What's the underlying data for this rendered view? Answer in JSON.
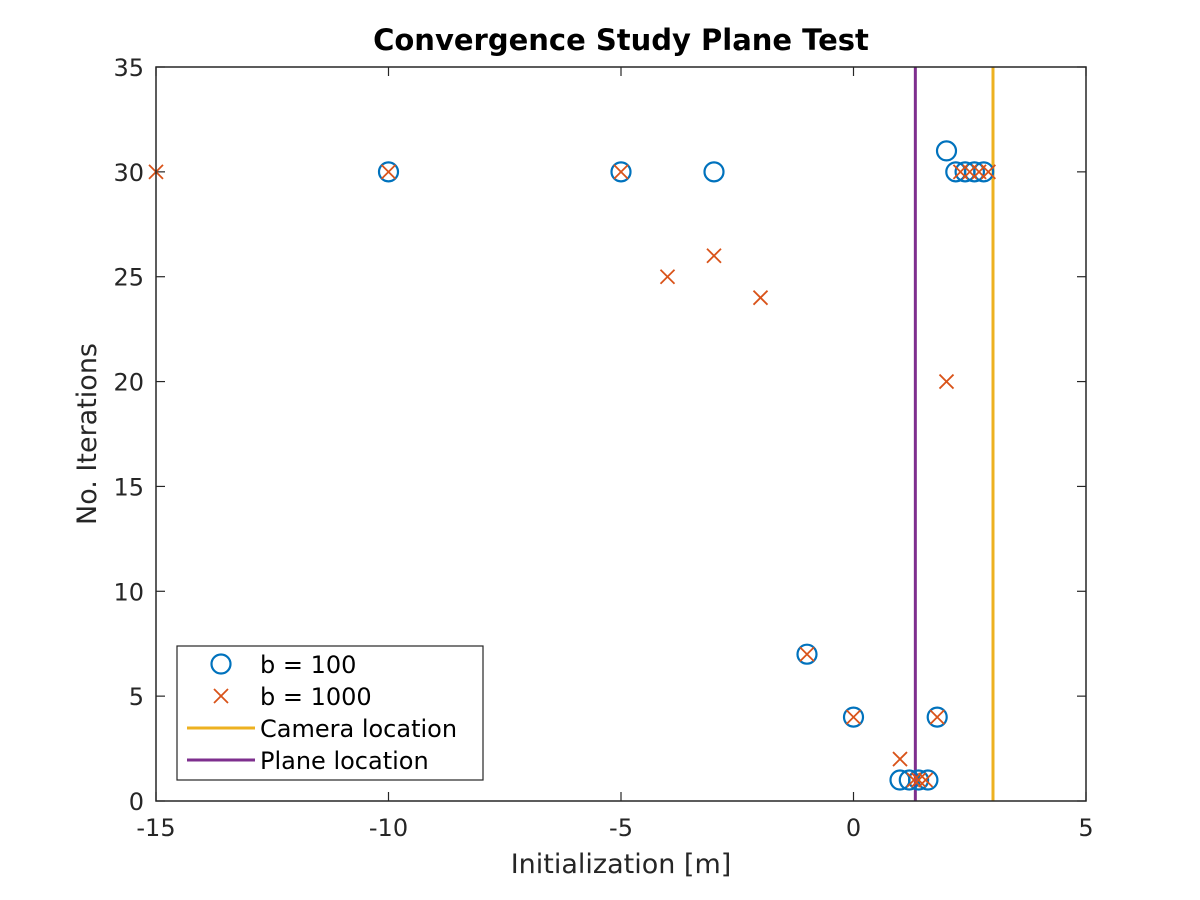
{
  "chart_data": {
    "type": "scatter",
    "title": "Convergence Study Plane Test",
    "xlabel": "Initialization [m]",
    "ylabel": "No. Iterations",
    "xlim": [
      -15,
      5
    ],
    "ylim": [
      0,
      35
    ],
    "xticks": [
      -15,
      -10,
      -5,
      0,
      5
    ],
    "yticks": [
      0,
      5,
      10,
      15,
      20,
      25,
      30,
      35
    ],
    "xtick_labels": [
      "-15",
      "-10",
      "-5",
      "0",
      "5"
    ],
    "ytick_labels": [
      "0",
      "5",
      "10",
      "15",
      "20",
      "25",
      "30",
      "35"
    ],
    "grid": false,
    "legend_position": "bottom-left",
    "series": [
      {
        "name": "b = 100",
        "marker": "circle",
        "color": "#0072BD",
        "points": [
          [
            -10,
            30
          ],
          [
            -5,
            30
          ],
          [
            -3,
            30
          ],
          [
            -1,
            7
          ],
          [
            0,
            4
          ],
          [
            1,
            1
          ],
          [
            1.2,
            1
          ],
          [
            1.4,
            1
          ],
          [
            1.6,
            1
          ],
          [
            1.8,
            4
          ],
          [
            2,
            31
          ],
          [
            2.2,
            30
          ],
          [
            2.4,
            30
          ],
          [
            2.6,
            30
          ],
          [
            2.8,
            30
          ]
        ]
      },
      {
        "name": "b = 1000",
        "marker": "x",
        "color": "#D95319",
        "points": [
          [
            -15,
            30
          ],
          [
            -10,
            30
          ],
          [
            -5,
            30
          ],
          [
            -4,
            25
          ],
          [
            -3,
            26
          ],
          [
            -2,
            24
          ],
          [
            -1,
            7
          ],
          [
            0,
            4
          ],
          [
            1,
            2
          ],
          [
            1.3,
            1
          ],
          [
            1.4,
            1
          ],
          [
            1.55,
            1
          ],
          [
            1.8,
            4
          ],
          [
            2,
            20
          ],
          [
            2.3,
            30
          ],
          [
            2.5,
            30
          ],
          [
            2.7,
            30
          ],
          [
            2.9,
            30
          ]
        ]
      },
      {
        "name": "Camera location",
        "type": "vline",
        "color": "#EDB120",
        "x": 3
      },
      {
        "name": "Plane location",
        "type": "vline",
        "color": "#7E2F8E",
        "x": 1.33
      }
    ]
  }
}
